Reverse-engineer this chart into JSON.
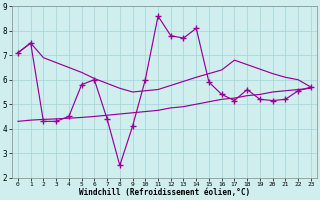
{
  "xlabel": "Windchill (Refroidissement éolien,°C)",
  "xlim": [
    -0.5,
    23.5
  ],
  "ylim": [
    2,
    9
  ],
  "yticks": [
    2,
    3,
    4,
    5,
    6,
    7,
    8,
    9
  ],
  "xticks": [
    0,
    1,
    2,
    3,
    4,
    5,
    6,
    7,
    8,
    9,
    10,
    11,
    12,
    13,
    14,
    15,
    16,
    17,
    18,
    19,
    20,
    21,
    22,
    23
  ],
  "bg_color": "#d0eeee",
  "line_color": "#990099",
  "grid_color": "#a8d8d8",
  "line_main_x": [
    0,
    1,
    2,
    3,
    4,
    5,
    6,
    7,
    8,
    9,
    10,
    11,
    12,
    13,
    14,
    15,
    16,
    17,
    18,
    19,
    20,
    21,
    22,
    23
  ],
  "line_main_y": [
    7.1,
    7.5,
    4.3,
    4.3,
    4.5,
    5.8,
    6.0,
    4.4,
    2.5,
    4.1,
    6.0,
    8.6,
    7.8,
    7.7,
    8.1,
    5.9,
    5.4,
    5.15,
    5.6,
    5.2,
    5.15,
    5.2,
    5.55,
    5.7
  ],
  "line_upper_x": [
    0,
    1,
    2,
    3,
    4,
    5,
    6,
    7,
    8,
    9,
    10,
    11,
    14,
    16,
    17,
    20,
    21,
    22,
    23
  ],
  "line_upper_y": [
    7.1,
    7.5,
    6.9,
    6.7,
    6.5,
    6.3,
    6.05,
    5.85,
    5.65,
    5.5,
    5.55,
    5.6,
    6.1,
    6.4,
    6.8,
    6.25,
    6.1,
    6.0,
    5.7
  ],
  "line_lower_x": [
    0,
    1,
    2,
    3,
    4,
    5,
    6,
    7,
    8,
    9,
    10,
    11,
    12,
    13,
    14,
    15,
    16,
    17,
    18,
    19,
    20,
    21,
    22,
    23
  ],
  "line_lower_y": [
    4.3,
    4.35,
    4.38,
    4.4,
    4.43,
    4.46,
    4.5,
    4.55,
    4.6,
    4.65,
    4.7,
    4.75,
    4.85,
    4.9,
    5.0,
    5.1,
    5.2,
    5.25,
    5.35,
    5.4,
    5.5,
    5.55,
    5.6,
    5.65
  ]
}
